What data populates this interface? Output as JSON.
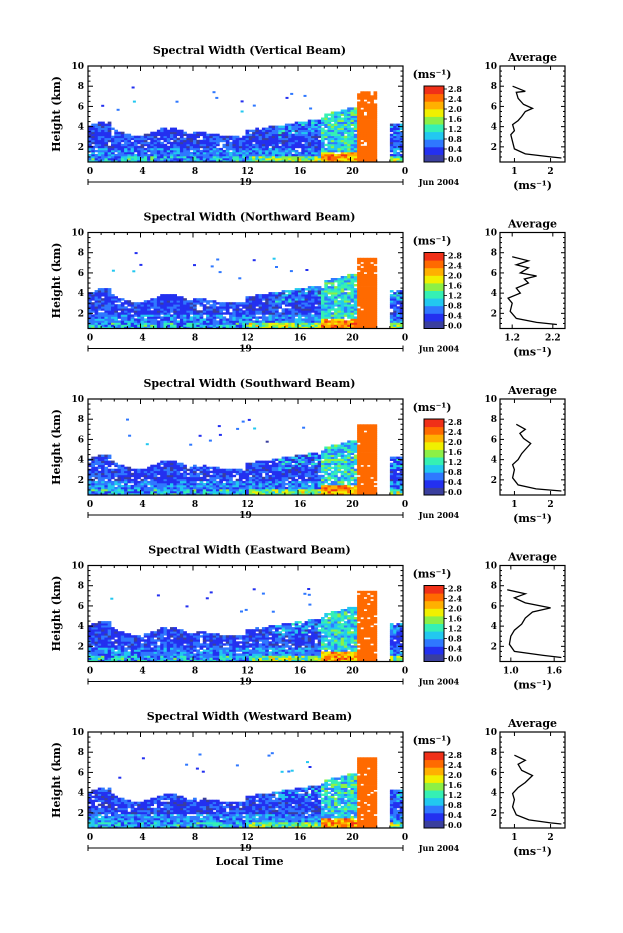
{
  "figure": {
    "x_axis_title": "Local Time",
    "date_label": "Jun 2004",
    "day_label": "19",
    "y_axis_title": "Height (km)",
    "colorbar_unit": "(ms⁻¹)",
    "average_title": "Average",
    "average_xlabel": "(ms⁻¹)"
  },
  "chart_data": [
    {
      "type": "heatmap",
      "title": "Spectral Width (Vertical Beam)",
      "xlabel": "",
      "ylabel": "Height (km)",
      "x_ticks": [
        "0",
        "4",
        "8",
        "12",
        "16",
        "20",
        "0"
      ],
      "y_ticks": [
        "2",
        "4",
        "6",
        "8",
        "10"
      ],
      "xlim": [
        0,
        24
      ],
      "ylim": [
        0.5,
        10
      ],
      "colorbar": {
        "ticks": [
          "0.0",
          "0.4",
          "0.8",
          "1.2",
          "1.6",
          "2.0",
          "2.4",
          "2.8"
        ],
        "range": [
          0,
          2.8
        ]
      },
      "average": {
        "title": "Average",
        "xlabel": "(ms⁻¹)",
        "x_ticks": [
          "1",
          "2"
        ],
        "xlim": [
          0.6,
          2.4
        ],
        "y_ticks": [
          "2",
          "4",
          "6",
          "8",
          "10"
        ],
        "profile": [
          [
            2.3,
            0.9
          ],
          [
            2.0,
            1.0
          ],
          [
            1.3,
            1.3
          ],
          [
            1.0,
            1.8
          ],
          [
            0.95,
            2.5
          ],
          [
            0.9,
            3.2
          ],
          [
            1.0,
            3.6
          ],
          [
            0.95,
            4.2
          ],
          [
            1.1,
            4.6
          ],
          [
            1.2,
            5.0
          ],
          [
            1.3,
            5.5
          ],
          [
            1.5,
            5.8
          ],
          [
            1.25,
            6.2
          ],
          [
            1.1,
            6.8
          ],
          [
            1.05,
            7.4
          ],
          [
            1.3,
            7.5
          ],
          [
            0.95,
            8.0
          ]
        ]
      }
    },
    {
      "type": "heatmap",
      "title": "Spectral Width (Northward Beam)",
      "xlabel": "",
      "ylabel": "Height (km)",
      "x_ticks": [
        "0",
        "4",
        "8",
        "12",
        "16",
        "20",
        "0"
      ],
      "y_ticks": [
        "2",
        "4",
        "6",
        "8",
        "10"
      ],
      "xlim": [
        0,
        24
      ],
      "ylim": [
        0.5,
        10
      ],
      "colorbar": {
        "ticks": [
          "0.0",
          "0.4",
          "0.8",
          "1.2",
          "1.6",
          "2.0",
          "2.4",
          "2.8"
        ],
        "range": [
          0,
          2.8
        ]
      },
      "average": {
        "title": "Average",
        "xlabel": "(ms⁻¹)",
        "x_ticks": [
          "1.2",
          "2.2"
        ],
        "xlim": [
          0.9,
          2.5
        ],
        "y_ticks": [
          "2",
          "4",
          "6",
          "8",
          "10"
        ],
        "profile": [
          [
            2.3,
            0.9
          ],
          [
            1.8,
            1.1
          ],
          [
            1.3,
            1.5
          ],
          [
            1.15,
            2.2
          ],
          [
            1.2,
            3.0
          ],
          [
            1.1,
            3.5
          ],
          [
            1.4,
            4.0
          ],
          [
            1.3,
            4.5
          ],
          [
            1.6,
            5.0
          ],
          [
            1.5,
            5.4
          ],
          [
            1.8,
            5.7
          ],
          [
            1.4,
            6.0
          ],
          [
            1.6,
            6.5
          ],
          [
            1.3,
            6.8
          ],
          [
            1.6,
            7.2
          ],
          [
            1.2,
            7.6
          ]
        ]
      }
    },
    {
      "type": "heatmap",
      "title": "Spectral Width (Southward Beam)",
      "xlabel": "",
      "ylabel": "Height (km)",
      "x_ticks": [
        "0",
        "4",
        "8",
        "12",
        "16",
        "20",
        "0"
      ],
      "y_ticks": [
        "2",
        "4",
        "6",
        "8",
        "10"
      ],
      "xlim": [
        0,
        24
      ],
      "ylim": [
        0.5,
        10
      ],
      "colorbar": {
        "ticks": [
          "0.0",
          "0.4",
          "0.8",
          "1.2",
          "1.6",
          "2.0",
          "2.4",
          "2.8"
        ],
        "range": [
          0,
          2.8
        ]
      },
      "average": {
        "title": "Average",
        "xlabel": "(ms⁻¹)",
        "x_ticks": [
          "1",
          "2"
        ],
        "xlim": [
          0.6,
          2.4
        ],
        "y_ticks": [
          "2",
          "4",
          "6",
          "8",
          "10"
        ],
        "profile": [
          [
            2.3,
            0.9
          ],
          [
            1.6,
            1.1
          ],
          [
            1.1,
            1.5
          ],
          [
            0.95,
            2.2
          ],
          [
            1.0,
            3.0
          ],
          [
            0.95,
            3.5
          ],
          [
            1.1,
            4.0
          ],
          [
            1.2,
            4.6
          ],
          [
            1.3,
            5.0
          ],
          [
            1.45,
            5.6
          ],
          [
            1.25,
            6.1
          ],
          [
            1.15,
            6.6
          ],
          [
            1.3,
            7.0
          ],
          [
            1.05,
            7.5
          ]
        ]
      }
    },
    {
      "type": "heatmap",
      "title": "Spectral Width (Eastward Beam)",
      "xlabel": "",
      "ylabel": "Height (km)",
      "x_ticks": [
        "0",
        "4",
        "8",
        "12",
        "16",
        "20",
        "0"
      ],
      "y_ticks": [
        "2",
        "4",
        "6",
        "8",
        "10"
      ],
      "xlim": [
        0,
        24
      ],
      "ylim": [
        0.5,
        10
      ],
      "colorbar": {
        "ticks": [
          "0.0",
          "0.4",
          "0.8",
          "1.2",
          "1.6",
          "2.0",
          "2.4",
          "2.8"
        ],
        "range": [
          0,
          2.8
        ]
      },
      "average": {
        "title": "Average",
        "xlabel": "(ms⁻¹)",
        "x_ticks": [
          "1.0",
          "1.6"
        ],
        "xlim": [
          0.85,
          1.75
        ],
        "y_ticks": [
          "2",
          "4",
          "6",
          "8",
          "10"
        ],
        "profile": [
          [
            1.7,
            0.9
          ],
          [
            1.45,
            1.1
          ],
          [
            1.05,
            1.5
          ],
          [
            0.98,
            2.2
          ],
          [
            1.0,
            3.0
          ],
          [
            1.05,
            3.6
          ],
          [
            1.15,
            4.2
          ],
          [
            1.2,
            4.8
          ],
          [
            1.3,
            5.4
          ],
          [
            1.55,
            5.8
          ],
          [
            1.2,
            6.3
          ],
          [
            1.05,
            6.8
          ],
          [
            1.2,
            7.2
          ],
          [
            0.95,
            7.6
          ]
        ]
      }
    },
    {
      "type": "heatmap",
      "title": "Spectral Width (Westward Beam)",
      "xlabel": "Local Time",
      "ylabel": "Height (km)",
      "x_ticks": [
        "0",
        "4",
        "8",
        "12",
        "16",
        "20",
        "0"
      ],
      "y_ticks": [
        "2",
        "4",
        "6",
        "8",
        "10"
      ],
      "xlim": [
        0,
        24
      ],
      "ylim": [
        0.5,
        10
      ],
      "colorbar": {
        "ticks": [
          "0.0",
          "0.4",
          "0.8",
          "1.2",
          "1.6",
          "2.0",
          "2.4",
          "2.8"
        ],
        "range": [
          0,
          2.8
        ]
      },
      "average": {
        "title": "Average",
        "xlabel": "(ms⁻¹)",
        "x_ticks": [
          "1",
          "2"
        ],
        "xlim": [
          0.6,
          2.4
        ],
        "y_ticks": [
          "2",
          "4",
          "6",
          "8",
          "10"
        ],
        "profile": [
          [
            2.3,
            0.9
          ],
          [
            2.0,
            1.0
          ],
          [
            1.4,
            1.3
          ],
          [
            1.05,
            1.8
          ],
          [
            0.95,
            2.6
          ],
          [
            1.0,
            3.3
          ],
          [
            0.95,
            3.9
          ],
          [
            1.1,
            4.5
          ],
          [
            1.3,
            5.0
          ],
          [
            1.5,
            5.7
          ],
          [
            1.2,
            6.2
          ],
          [
            1.1,
            6.8
          ],
          [
            1.3,
            7.2
          ],
          [
            1.0,
            7.7
          ]
        ]
      }
    }
  ]
}
